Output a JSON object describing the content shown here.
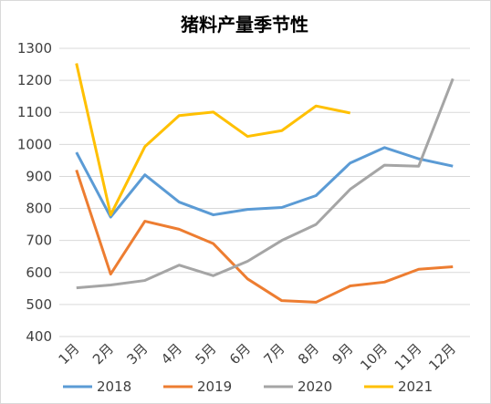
{
  "chart_data": {
    "type": "line",
    "title": "猪料产量季节性",
    "categories": [
      "1月",
      "2月",
      "3月",
      "4月",
      "5月",
      "6月",
      "7月",
      "8月",
      "9月",
      "10月",
      "11月",
      "12月"
    ],
    "series": [
      {
        "name": "2018",
        "color": "#5b9bd5",
        "values": [
          975,
          773,
          905,
          820,
          780,
          797,
          803,
          840,
          942,
          990,
          955,
          932
        ]
      },
      {
        "name": "2019",
        "color": "#ed7d31",
        "values": [
          920,
          595,
          760,
          735,
          690,
          580,
          512,
          507,
          558,
          570,
          610,
          618
        ]
      },
      {
        "name": "2020",
        "color": "#a5a5a5",
        "values": [
          552,
          561,
          575,
          623,
          590,
          635,
          700,
          750,
          860,
          935,
          932,
          1205
        ]
      },
      {
        "name": "2021",
        "color": "#ffc000",
        "values": [
          1253,
          780,
          993,
          1090,
          1101,
          1025,
          1043,
          1120,
          1098,
          null,
          null,
          null
        ]
      }
    ],
    "ylim": [
      400,
      1300
    ],
    "yticks": [
      400,
      500,
      600,
      700,
      800,
      900,
      1000,
      1100,
      1200,
      1300
    ],
    "grid": true,
    "legend": "bottom"
  }
}
